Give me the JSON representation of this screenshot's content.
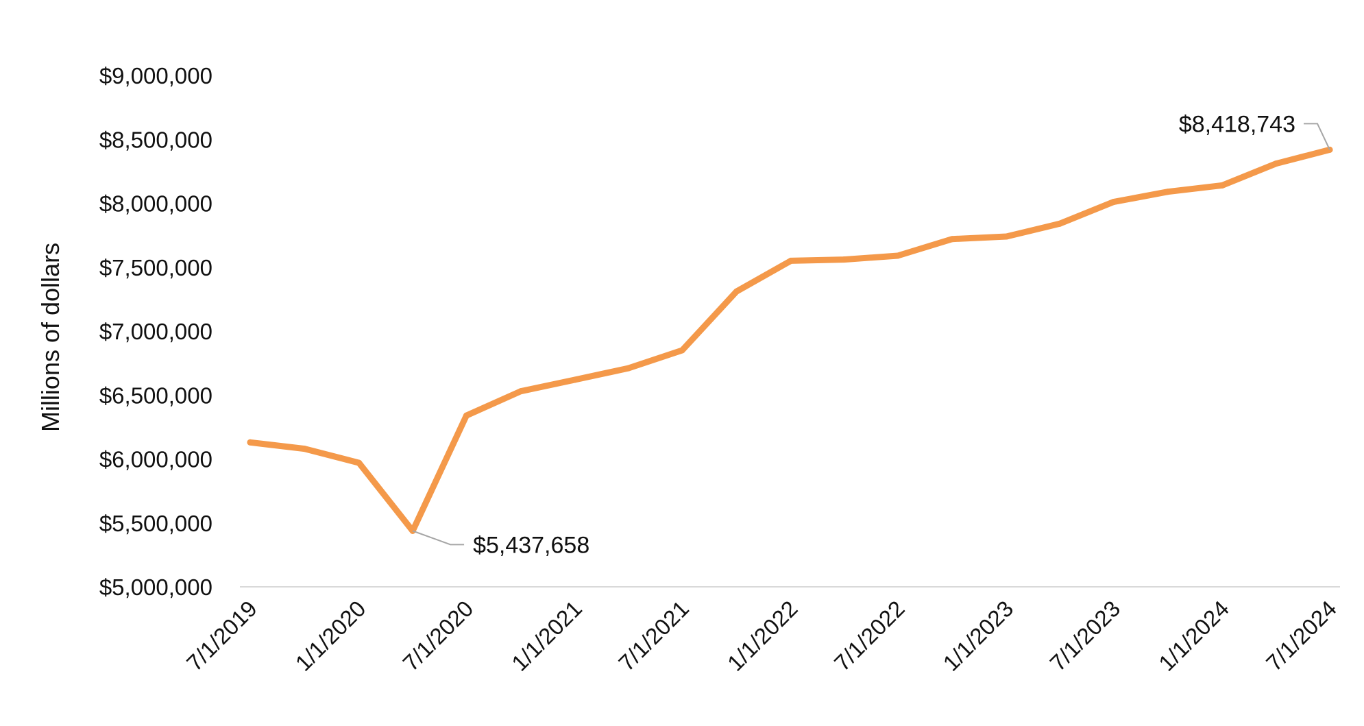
{
  "chart_data": {
    "type": "line",
    "title": "",
    "xlabel": "",
    "ylabel": "Millions of dollars",
    "ylim": [
      5000000,
      9000000
    ],
    "yticks": [
      "$5,000,000",
      "$5,500,000",
      "$6,000,000",
      "$6,500,000",
      "$7,000,000",
      "$7,500,000",
      "$8,000,000",
      "$8,500,000",
      "$9,000,000"
    ],
    "xticks": [
      "7/1/2019",
      "1/1/2020",
      "7/1/2020",
      "1/1/2021",
      "7/1/2021",
      "1/1/2022",
      "7/1/2022",
      "1/1/2023",
      "7/1/2023",
      "1/1/2024",
      "7/1/2024"
    ],
    "x": [
      "7/1/2019",
      "10/1/2019",
      "1/1/2020",
      "4/1/2020",
      "7/1/2020",
      "10/1/2020",
      "1/1/2021",
      "4/1/2021",
      "7/1/2021",
      "10/1/2021",
      "1/1/2022",
      "4/1/2022",
      "7/1/2022",
      "10/1/2022",
      "1/1/2023",
      "4/1/2023",
      "7/1/2023",
      "10/1/2023",
      "1/1/2024",
      "4/1/2024",
      "7/1/2024"
    ],
    "values": [
      6130000,
      6080000,
      5970000,
      5437658,
      6340000,
      6530000,
      6620000,
      6710000,
      6850000,
      7310000,
      7550000,
      7560000,
      7590000,
      7720000,
      7740000,
      7840000,
      8010000,
      8090000,
      8140000,
      8310000,
      8418743
    ],
    "line_color": "#F4994A",
    "grid": false,
    "annotations": [
      {
        "index": 3,
        "text": "$5,437,658"
      },
      {
        "index": 20,
        "text": "$8,418,743"
      }
    ]
  }
}
